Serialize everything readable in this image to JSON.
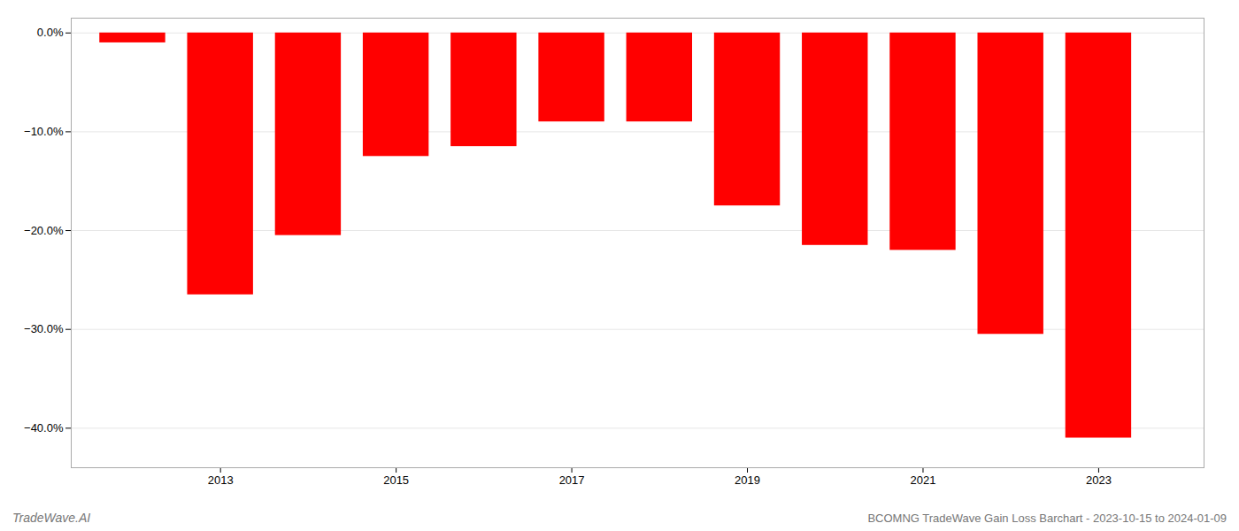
{
  "chart_data": {
    "type": "bar",
    "title": "BCOMNG TradeWave Gain Loss Barchart - 2023-10-15 to 2024-01-09",
    "annotations": [
      "TradeWave.AI"
    ],
    "x": [
      2012,
      2013,
      2014,
      2015,
      2016,
      2017,
      2018,
      2019,
      2020,
      2021,
      2022,
      2023
    ],
    "values": [
      -1.0,
      -26.5,
      -20.5,
      -12.5,
      -11.5,
      -9.0,
      -9.0,
      -17.5,
      -21.5,
      -22.0,
      -30.5,
      -41.0
    ],
    "color": "#ff0000",
    "xlim": [
      2011.3,
      2024.2
    ],
    "xticks": [
      2013,
      2015,
      2017,
      2019,
      2021,
      2023
    ],
    "ylim": [
      -44,
      1.5
    ],
    "yticks": [
      {
        "value": 0,
        "label": "0.0%"
      },
      {
        "value": -10,
        "label": "−10.0%"
      },
      {
        "value": -20,
        "label": "−20.0%"
      },
      {
        "value": -30,
        "label": "−30.0%"
      },
      {
        "value": -40,
        "label": "−40.0%"
      }
    ],
    "grid": true
  }
}
